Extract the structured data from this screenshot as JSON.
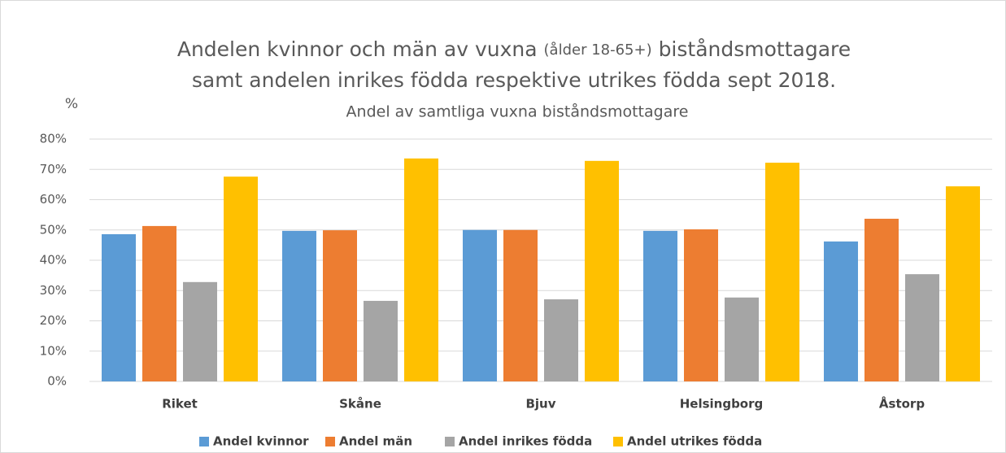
{
  "chart_data": {
    "type": "bar",
    "title": [
      "Andelen kvinnor och män av vuxna",
      "(ålder 18-65+)",
      "biståndsmottagare",
      "samt andelen inrikes födda respektive utrikes födda sept 2018."
    ],
    "subtitle": "Andel av samtliga vuxna biståndsmottagare",
    "y_label": "%",
    "categories": [
      "Riket",
      "Skåne",
      "Bjuv",
      "Helsingborg",
      "Åstorp"
    ],
    "series": [
      {
        "name": "Andel kvinnor",
        "color": "#5b9bd5",
        "values": [
          48.6,
          49.7,
          50.0,
          49.7,
          46.2
        ]
      },
      {
        "name": "Andel män",
        "color": "#ed7d31",
        "values": [
          51.3,
          49.9,
          50.0,
          50.2,
          53.7
        ]
      },
      {
        "name": "Andel inrikes födda",
        "color": "#a5a5a5",
        "values": [
          32.8,
          26.6,
          27.1,
          27.7,
          35.4
        ]
      },
      {
        "name": "Andel utrikes födda",
        "color": "#ffc000",
        "values": [
          67.6,
          73.6,
          72.8,
          72.2,
          64.4
        ]
      }
    ],
    "ylim": [
      0,
      80
    ],
    "yticks": [
      {
        "value": 0,
        "label": "0%"
      },
      {
        "value": 10,
        "label": "10%"
      },
      {
        "value": 20,
        "label": "20%"
      },
      {
        "value": 30,
        "label": "30%"
      },
      {
        "value": 40,
        "label": "40%"
      },
      {
        "value": 50,
        "label": "50%"
      },
      {
        "value": 60,
        "label": "60%"
      },
      {
        "value": 70,
        "label": "70%"
      },
      {
        "value": 80,
        "label": "80%"
      }
    ],
    "grid": true,
    "legend": "bottom"
  }
}
